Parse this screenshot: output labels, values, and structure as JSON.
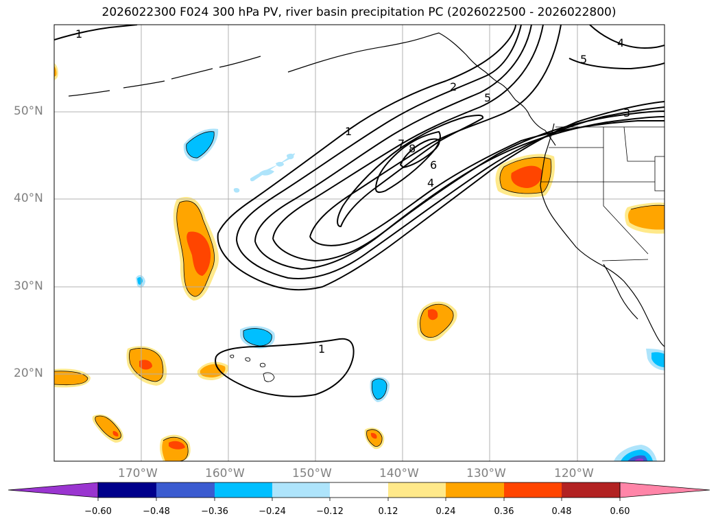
{
  "title": "2026022300 F024 300 hPa PV, river basin precipitation PC (2026022500 - 2026022800)",
  "map": {
    "lon_range": [
      -180,
      -110
    ],
    "lat_range": [
      10,
      60
    ],
    "lat_gridlines": [
      20,
      30,
      40,
      50
    ],
    "lon_gridlines": [
      -170,
      -160,
      -150,
      -140,
      -130,
      -120
    ],
    "lat_labels": [
      "20°N",
      "30°N",
      "40°N",
      "50°N"
    ],
    "lon_labels": [
      "170°W",
      "160°W",
      "150°W",
      "140°W",
      "130°W",
      "120°W"
    ]
  },
  "contour_labels": [
    "1",
    "1",
    "2",
    "5",
    "7",
    "8",
    "6",
    "4",
    "1",
    "3",
    "5",
    "4"
  ],
  "colorbar": {
    "ticks": [
      "−0.60",
      "−0.48",
      "−0.36",
      "−0.24",
      "−0.12",
      "0.12",
      "0.24",
      "0.36",
      "0.48",
      "0.60"
    ],
    "colors": [
      "#9a35d0",
      "#00008b",
      "#3a5bd0",
      "#00bfff",
      "#aee4fb",
      "#ffffff",
      "#ffe98a",
      "#ffa500",
      "#ff4500",
      "#b22222",
      "#ff85a8"
    ]
  },
  "colors": {
    "grid": "#b0b0b0",
    "coast": "#000000",
    "contour": "#000000",
    "label": "#808080"
  }
}
